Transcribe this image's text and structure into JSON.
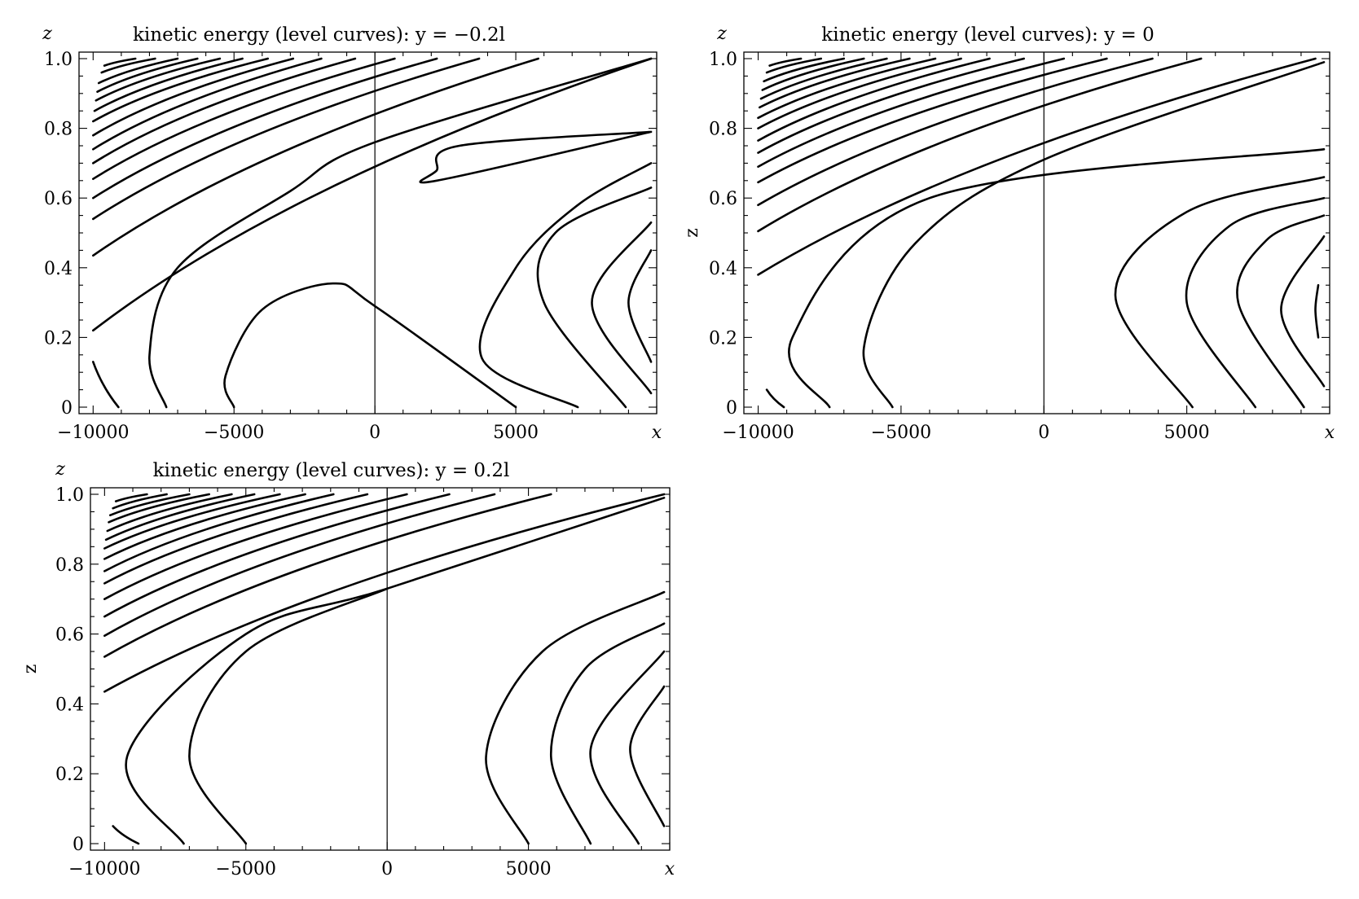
{
  "figure": {
    "panels": [
      {
        "id": "left-top",
        "title": "kinetic energy (level curves): y = −0.2l",
        "side_label": ""
      },
      {
        "id": "right-top",
        "title": "kinetic energy (level curves): y = 0",
        "side_label": "z"
      },
      {
        "id": "left-bottom",
        "title": "kinetic energy (level curves): y = 0.2l",
        "side_label": "z"
      }
    ]
  },
  "chart_data": [
    {
      "type": "line",
      "title": "kinetic energy (level curves): y = −0.2l",
      "xlabel": "x",
      "ylabel": "z",
      "xlim": [
        -10500,
        10000
      ],
      "ylim": [
        0,
        1.0
      ],
      "x_ticks": [
        -10000,
        -5000,
        0,
        5000
      ],
      "x_tick_labels": [
        "−10000",
        "−5000",
        "0",
        "5000"
      ],
      "y_ticks": [
        0,
        0.2,
        0.4,
        0.6,
        0.8,
        1.0
      ],
      "y_tick_labels": [
        "0",
        "0.2",
        "0.4",
        "0.6",
        "0.8",
        "1.0"
      ],
      "zero_line_x": 0,
      "series": [
        {
          "x": [
            -9600,
            -8500
          ],
          "y": [
            0.98,
            1.0
          ]
        },
        {
          "x": [
            -9700,
            -7800
          ],
          "y": [
            0.96,
            1.0
          ]
        },
        {
          "x": [
            -9800,
            -7000
          ],
          "y": [
            0.93,
            1.0
          ]
        },
        {
          "x": [
            -9850,
            -6300
          ],
          "y": [
            0.905,
            1.0
          ]
        },
        {
          "x": [
            -9900,
            -5500
          ],
          "y": [
            0.88,
            1.0
          ]
        },
        {
          "x": [
            -9950,
            -4700
          ],
          "y": [
            0.85,
            1.0
          ]
        },
        {
          "x": [
            -10000,
            -3800
          ],
          "y": [
            0.82,
            1.0
          ]
        },
        {
          "x": [
            -10000,
            -2900
          ],
          "y": [
            0.78,
            1.0
          ]
        },
        {
          "x": [
            -10000,
            -1900
          ],
          "y": [
            0.74,
            1.0
          ]
        },
        {
          "x": [
            -10000,
            -700
          ],
          "y": [
            0.7,
            1.0
          ]
        },
        {
          "x": [
            -10000,
            700
          ],
          "y": [
            0.655,
            1.0
          ]
        },
        {
          "x": [
            -10000,
            2200
          ],
          "y": [
            0.6,
            1.0
          ]
        },
        {
          "x": [
            -10000,
            3700
          ],
          "y": [
            0.54,
            1.0
          ]
        },
        {
          "x": [
            -10000,
            5800
          ],
          "y": [
            0.435,
            1.0
          ]
        },
        {
          "x": [
            -10000,
            9800
          ],
          "y": [
            0.22,
            1.0
          ]
        },
        {
          "x": [
            -10000,
            -9100
          ],
          "y": [
            0.13,
            0.0
          ]
        },
        {
          "x": [
            -7400,
            -8000,
            -7000,
            -3000,
            0,
            9800
          ],
          "y": [
            0.0,
            0.15,
            0.4,
            0.62,
            0.76,
            1.0
          ]
        },
        {
          "x": [
            9800,
            2200,
            2200,
            3000,
            9800
          ],
          "y": [
            0.79,
            0.65,
            0.68,
            0.75,
            0.79
          ]
        },
        {
          "x": [
            -5000,
            -5300,
            -4000,
            -1500,
            0,
            5000
          ],
          "y": [
            0.0,
            0.09,
            0.28,
            0.355,
            0.29,
            0.0
          ]
        },
        {
          "x": [
            7200,
            3800,
            5000,
            7200,
            9800
          ],
          "y": [
            0.0,
            0.14,
            0.4,
            0.58,
            0.7
          ]
        },
        {
          "x": [
            8900,
            6000,
            6400,
            9800
          ],
          "y": [
            0.0,
            0.3,
            0.5,
            0.63
          ]
        },
        {
          "x": [
            9800,
            7700,
            9800
          ],
          "y": [
            0.04,
            0.3,
            0.53
          ]
        },
        {
          "x": [
            9800,
            9000,
            9800
          ],
          "y": [
            0.13,
            0.3,
            0.45
          ]
        }
      ]
    },
    {
      "type": "line",
      "title": "kinetic energy (level curves): y = 0",
      "xlabel": "x",
      "ylabel": "z",
      "xlim": [
        -10500,
        10000
      ],
      "ylim": [
        0,
        1.0
      ],
      "x_ticks": [
        -10000,
        -5000,
        0,
        5000
      ],
      "x_tick_labels": [
        "−10000",
        "−5000",
        "0",
        "5000"
      ],
      "y_ticks": [
        0,
        0.2,
        0.4,
        0.6,
        0.8,
        1.0
      ],
      "y_tick_labels": [
        "0",
        "0.2",
        "0.4",
        "0.6",
        "0.8",
        "1.0"
      ],
      "zero_line_x": 0,
      "series": [
        {
          "x": [
            -9600,
            -8500
          ],
          "y": [
            0.98,
            1.0
          ]
        },
        {
          "x": [
            -9700,
            -7800
          ],
          "y": [
            0.96,
            1.0
          ]
        },
        {
          "x": [
            -9800,
            -7000
          ],
          "y": [
            0.935,
            1.0
          ]
        },
        {
          "x": [
            -9850,
            -6300
          ],
          "y": [
            0.91,
            1.0
          ]
        },
        {
          "x": [
            -9900,
            -5500
          ],
          "y": [
            0.885,
            1.0
          ]
        },
        {
          "x": [
            -9950,
            -4700
          ],
          "y": [
            0.86,
            1.0
          ]
        },
        {
          "x": [
            -10000,
            -3800
          ],
          "y": [
            0.83,
            1.0
          ]
        },
        {
          "x": [
            -10000,
            -2900
          ],
          "y": [
            0.8,
            1.0
          ]
        },
        {
          "x": [
            -10000,
            -1900
          ],
          "y": [
            0.765,
            1.0
          ]
        },
        {
          "x": [
            -10000,
            -700
          ],
          "y": [
            0.73,
            1.0
          ]
        },
        {
          "x": [
            -10000,
            700
          ],
          "y": [
            0.69,
            1.0
          ]
        },
        {
          "x": [
            -10000,
            2200
          ],
          "y": [
            0.645,
            1.0
          ]
        },
        {
          "x": [
            -10000,
            3800
          ],
          "y": [
            0.58,
            1.0
          ]
        },
        {
          "x": [
            -10000,
            5500
          ],
          "y": [
            0.505,
            1.0
          ]
        },
        {
          "x": [
            -10000,
            9500
          ],
          "y": [
            0.38,
            1.0
          ]
        },
        {
          "x": [
            -9700,
            -9100
          ],
          "y": [
            0.05,
            0.0
          ]
        },
        {
          "x": [
            -7500,
            -8800,
            -4000,
            9800
          ],
          "y": [
            0.0,
            0.2,
            0.6,
            0.74
          ]
        },
        {
          "x": [
            -5300,
            -6300,
            -4500,
            0,
            9800
          ],
          "y": [
            0.0,
            0.17,
            0.47,
            0.71,
            0.99
          ]
        },
        {
          "x": [
            5200,
            2500,
            5000,
            9800
          ],
          "y": [
            0.0,
            0.32,
            0.56,
            0.66
          ]
        },
        {
          "x": [
            7400,
            5000,
            6500,
            9800
          ],
          "y": [
            0.0,
            0.3,
            0.52,
            0.6
          ]
        },
        {
          "x": [
            9100,
            6800,
            7800,
            9800
          ],
          "y": [
            0.0,
            0.3,
            0.48,
            0.55
          ]
        },
        {
          "x": [
            9800,
            8300,
            9800
          ],
          "y": [
            0.06,
            0.28,
            0.49
          ]
        },
        {
          "x": [
            9600,
            9500,
            9600
          ],
          "y": [
            0.2,
            0.28,
            0.35
          ]
        }
      ]
    },
    {
      "type": "line",
      "title": "kinetic energy (level curves): y = 0.2l",
      "xlabel": "x",
      "ylabel": "z",
      "xlim": [
        -10500,
        10000
      ],
      "ylim": [
        0,
        1.0
      ],
      "x_ticks": [
        -10000,
        -5000,
        0,
        5000
      ],
      "x_tick_labels": [
        "−10000",
        "−5000",
        "0",
        "5000"
      ],
      "y_ticks": [
        0,
        0.2,
        0.4,
        0.6,
        0.8,
        1.0
      ],
      "y_tick_labels": [
        "0",
        "0.2",
        "0.4",
        "0.6",
        "0.8",
        "1.0"
      ],
      "zero_line_x": 0,
      "series": [
        {
          "x": [
            -9600,
            -8500
          ],
          "y": [
            0.98,
            1.0
          ]
        },
        {
          "x": [
            -9700,
            -7800
          ],
          "y": [
            0.96,
            1.0
          ]
        },
        {
          "x": [
            -9800,
            -7000
          ],
          "y": [
            0.94,
            1.0
          ]
        },
        {
          "x": [
            -9850,
            -6300
          ],
          "y": [
            0.92,
            1.0
          ]
        },
        {
          "x": [
            -9900,
            -5500
          ],
          "y": [
            0.895,
            1.0
          ]
        },
        {
          "x": [
            -9950,
            -4700
          ],
          "y": [
            0.87,
            1.0
          ]
        },
        {
          "x": [
            -10000,
            -3800
          ],
          "y": [
            0.845,
            1.0
          ]
        },
        {
          "x": [
            -10000,
            -2900
          ],
          "y": [
            0.815,
            1.0
          ]
        },
        {
          "x": [
            -10000,
            -1900
          ],
          "y": [
            0.78,
            1.0
          ]
        },
        {
          "x": [
            -10000,
            -700
          ],
          "y": [
            0.745,
            1.0
          ]
        },
        {
          "x": [
            -10000,
            700
          ],
          "y": [
            0.7,
            1.0
          ]
        },
        {
          "x": [
            -10000,
            2200
          ],
          "y": [
            0.65,
            1.0
          ]
        },
        {
          "x": [
            -10000,
            3800
          ],
          "y": [
            0.595,
            1.0
          ]
        },
        {
          "x": [
            -10000,
            5800
          ],
          "y": [
            0.535,
            1.0
          ]
        },
        {
          "x": [
            -10000,
            9800
          ],
          "y": [
            0.435,
            1.0
          ]
        },
        {
          "x": [
            -9700,
            -8800
          ],
          "y": [
            0.05,
            0.0
          ]
        },
        {
          "x": [
            -7200,
            -9200,
            -5000,
            0,
            9800
          ],
          "y": [
            0.0,
            0.25,
            0.6,
            0.73,
            0.99
          ]
        },
        {
          "x": [
            -5000,
            -7000,
            -5000,
            0
          ],
          "y": [
            0.0,
            0.25,
            0.55,
            0.73
          ]
        },
        {
          "x": [
            5000,
            3500,
            5500,
            9800
          ],
          "y": [
            0.0,
            0.25,
            0.55,
            0.72
          ]
        },
        {
          "x": [
            7200,
            5800,
            7000,
            9800
          ],
          "y": [
            0.0,
            0.25,
            0.5,
            0.63
          ]
        },
        {
          "x": [
            8900,
            7200,
            9800
          ],
          "y": [
            0.0,
            0.27,
            0.55
          ]
        },
        {
          "x": [
            9800,
            8600,
            9800
          ],
          "y": [
            0.05,
            0.27,
            0.45
          ]
        }
      ]
    }
  ]
}
